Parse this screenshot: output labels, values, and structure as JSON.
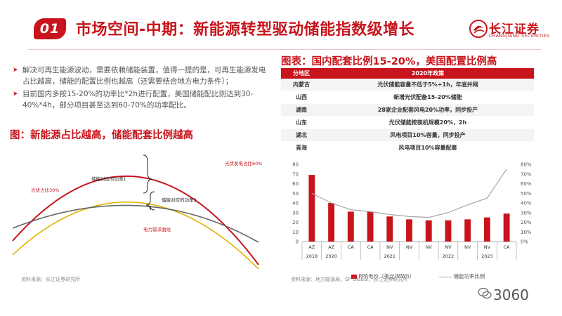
{
  "header": {
    "section_number": "01",
    "title": "市场空间-中期：新能源转型驱动储能指数级增长",
    "logo_text": "长江证券",
    "logo_sub": "CHANGJIANG SECURITIES"
  },
  "bullets": [
    "解决可再生能源波动，需要依赖储能装置，值得一提的是，可再生能源发电占比越高，储能的配置比例也越高（还需要结合地方电力条件）；",
    "目前国内多按15-20%的功率比*2h进行配置，美国储能配比则达到30-40%*4h，部分项目甚至达到60-70%的功率配比。"
  ],
  "left_figure": {
    "title": "图：新能源占比越高，储能配套比例越高",
    "labels": {
      "pv_gen": "光伏发电占比60%",
      "pv_share": "光伏占比30%",
      "storage1": "储能对应的功率1",
      "storage2": "储能对应的功率2",
      "demand": "电力需求曲线"
    },
    "source": "资料来源：长江证券研究所",
    "colors": {
      "red": "#c8141c",
      "yellow": "#e0b400",
      "gray": "#666666"
    }
  },
  "right_figure": {
    "title": "图表：国内配套比例15-20%，美国配置比例高",
    "table_headers": [
      "分地区",
      "2020年政策"
    ],
    "table_rows": [
      {
        "region": "内蒙古",
        "policy": "光伏储能容量不低于5%+1h，年底并网"
      },
      {
        "region": "山西",
        "policy": "新增光伏配备15-20%储能"
      },
      {
        "region": "湖南",
        "policy": "28家企业配套风电20%功率，同步投产"
      },
      {
        "region": "山东",
        "policy": "光伏储能按装机规模20%，2h"
      },
      {
        "region": "湖北",
        "policy": "风电项目10%容量，同步投产"
      },
      {
        "region": "青海",
        "policy": "风电项目10%容量配套"
      }
    ],
    "source": "资料来源：地方能源局，SP Global，长江证券研究所",
    "legend": {
      "bar": "PPA电价（美元/MWh）",
      "line": "储能功率比例"
    }
  },
  "chart_data": {
    "type": "bar",
    "categories": [
      "AZ",
      "AZ",
      "CA",
      "CA",
      "NV",
      "NV",
      "NV",
      "NV",
      "NV",
      "NV",
      "CA"
    ],
    "year_groups": [
      {
        "label": "2018",
        "start": 0,
        "end": 0
      },
      {
        "label": "2020",
        "start": 1,
        "end": 1
      },
      {
        "label": "2021",
        "start": 2,
        "end": 6
      },
      {
        "label": "2022",
        "start": 7,
        "end": 7
      },
      {
        "label": "2023",
        "start": 8,
        "end": 10
      }
    ],
    "series": [
      {
        "name": "PPA电价（美元/MWh）",
        "type": "bar",
        "axis": "left",
        "color": "#c8141c",
        "values": [
          69,
          40,
          31,
          31,
          26,
          23,
          22,
          22,
          23,
          25,
          29
        ]
      },
      {
        "name": "储能功率比例",
        "type": "line",
        "axis": "right",
        "color": "#a8a8a8",
        "values": [
          50,
          40,
          33,
          31,
          28,
          26,
          25,
          30,
          38,
          45,
          75
        ]
      }
    ],
    "y_left": {
      "min": 0,
      "max": 80,
      "ticks": [
        0,
        10,
        20,
        30,
        40,
        50,
        60,
        70,
        80
      ]
    },
    "y_right": {
      "min": 0,
      "max": 80,
      "ticks": [
        "0%",
        "10%",
        "20%",
        "30%",
        "40%",
        "50%",
        "60%",
        "70%",
        "80%"
      ]
    },
    "grid": false,
    "legend_position": "bottom"
  },
  "footer": {
    "wechat_text": "3060"
  }
}
